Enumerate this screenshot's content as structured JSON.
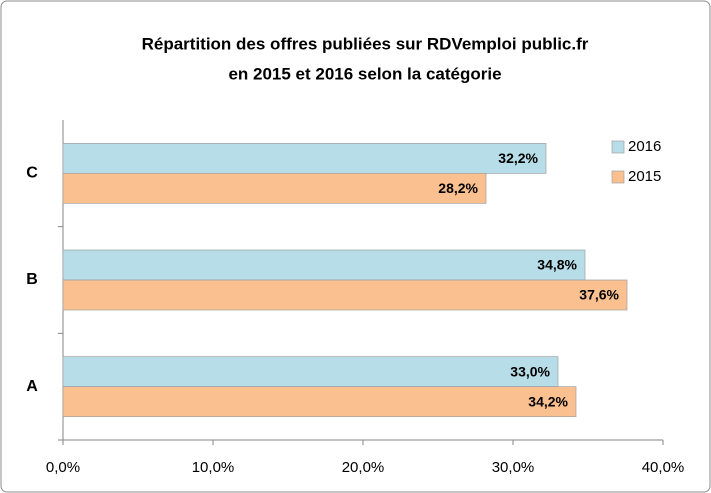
{
  "chart_data": {
    "type": "barh",
    "title": [
      "Répartition des offres publiées sur RDVemploi public.fr",
      "en 2015  et 2016  selon la catégorie"
    ],
    "categories": [
      "A",
      "B",
      "C"
    ],
    "series": [
      {
        "name": "2016",
        "color": "#b7dde8",
        "values": [
          33.0,
          34.8,
          32.2
        ],
        "value_labels": [
          "33,0%",
          "34,8%",
          "32,2%"
        ]
      },
      {
        "name": "2015",
        "color": "#fac090",
        "values": [
          34.2,
          37.6,
          28.2
        ],
        "value_labels": [
          "34,2%",
          "37,6%",
          "28,2%"
        ]
      }
    ],
    "xlim": [
      0,
      40
    ],
    "xticks": [
      {
        "value": 0,
        "label": "0,0%"
      },
      {
        "value": 10,
        "label": "10,0%"
      },
      {
        "value": 20,
        "label": "20,0%"
      },
      {
        "value": 30,
        "label": "30,0%"
      },
      {
        "value": 40,
        "label": "40,0%"
      }
    ],
    "legend": "right"
  }
}
